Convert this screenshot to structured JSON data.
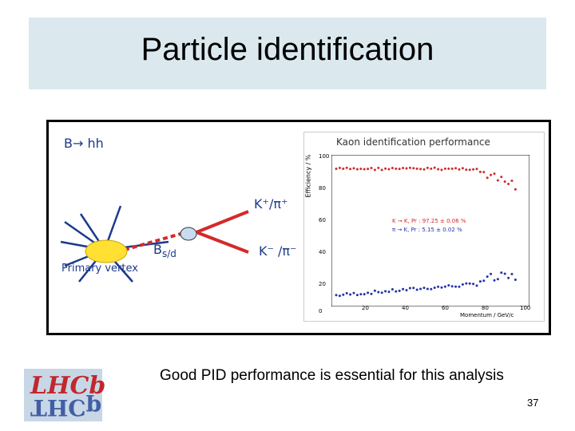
{
  "slide": {
    "title": "Particle identification",
    "caption": "Good PID performance is essential for this analysis",
    "page_number": "37"
  },
  "diagram": {
    "decay_label": "B→ hh",
    "pos_label": "K⁺/π⁺",
    "neg_label": "K⁻ /π⁻",
    "meson_label_main": "B",
    "meson_label_sub": "s/d",
    "vertex_label": "Primary vertex",
    "colors": {
      "text": "#1a3a8c",
      "vertex": "#ffe033",
      "flight": "#d42a2a",
      "daughters": "#d42a2a",
      "secondary": "#c9dcef"
    }
  },
  "plot": {
    "title": "Kaon identification performance",
    "y_axis_label": "Efficiency / %",
    "x_axis_label": "Momentum / GeV/c",
    "y_ticks": [
      "100",
      "80",
      "60",
      "40",
      "20",
      "0"
    ],
    "x_ticks": [
      "20",
      "40",
      "60",
      "80",
      "100"
    ],
    "legend": [
      {
        "text": "K → K, Pr : 97.25 ± 0.06 %",
        "color": "#d42a2a"
      },
      {
        "text": "π → K, Pr : 5.15 ± 0.02 %",
        "color": "#2233aa"
      }
    ]
  },
  "logo": {
    "text_top": "LHCb",
    "text_bottom": "THCp",
    "colors": {
      "top": "#c0282d",
      "bottom": "#2b4a9a",
      "bg": "#c8d7e6"
    }
  }
}
